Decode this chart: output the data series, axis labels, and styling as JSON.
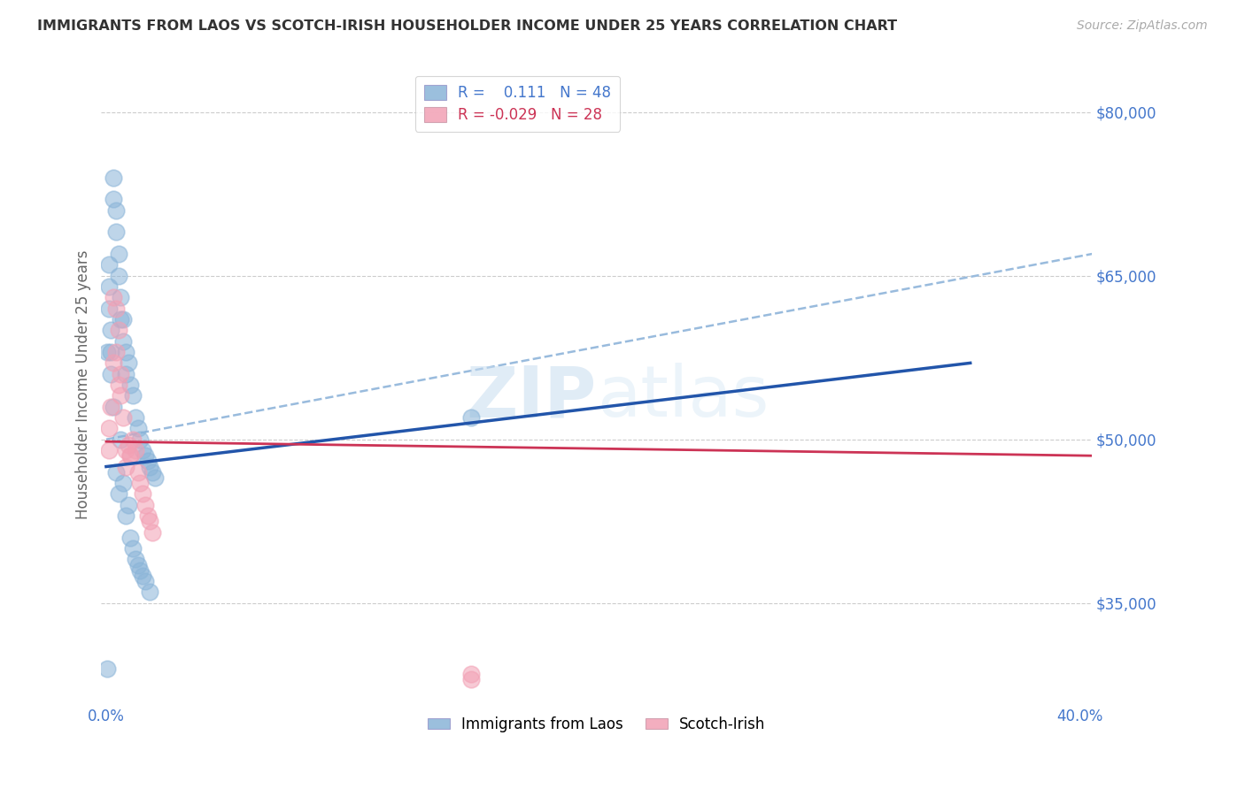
{
  "title": "IMMIGRANTS FROM LAOS VS SCOTCH-IRISH HOUSEHOLDER INCOME UNDER 25 YEARS CORRELATION CHART",
  "source": "Source: ZipAtlas.com",
  "ylabel": "Householder Income Under 25 years",
  "y_ticks": [
    35000,
    50000,
    65000,
    80000
  ],
  "y_tick_labels": [
    "$35,000",
    "$50,000",
    "$65,000",
    "$80,000"
  ],
  "y_min": 26000,
  "y_max": 84000,
  "x_min": -0.002,
  "x_max": 0.405,
  "watermark_zip": "ZIP",
  "watermark_atlas": "atlas",
  "blue_color": "#8ab4d8",
  "pink_color": "#f2a0b4",
  "blue_line_color": "#2255aa",
  "pink_line_color": "#cc3355",
  "dashed_line_color": "#99bbdd",
  "axis_label_color": "#4477cc",
  "background_color": "#ffffff",
  "grid_color": "#cccccc",
  "blue_x": [
    0.003,
    0.003,
    0.004,
    0.004,
    0.005,
    0.005,
    0.006,
    0.006,
    0.007,
    0.007,
    0.008,
    0.008,
    0.009,
    0.01,
    0.011,
    0.012,
    0.013,
    0.014,
    0.015,
    0.016,
    0.017,
    0.018,
    0.019,
    0.02,
    0.0005,
    0.001,
    0.001,
    0.001,
    0.002,
    0.002,
    0.002,
    0.003,
    0.004,
    0.005,
    0.006,
    0.007,
    0.008,
    0.009,
    0.01,
    0.011,
    0.012,
    0.013,
    0.014,
    0.015,
    0.016,
    0.018,
    0.15,
    0.0005
  ],
  "blue_y": [
    72000,
    74000,
    69000,
    71000,
    65000,
    67000,
    61000,
    63000,
    59000,
    61000,
    56000,
    58000,
    57000,
    55000,
    54000,
    52000,
    51000,
    50000,
    49000,
    48500,
    48000,
    47500,
    47000,
    46500,
    58000,
    62000,
    64000,
    66000,
    56000,
    58000,
    60000,
    53000,
    47000,
    45000,
    50000,
    46000,
    43000,
    44000,
    41000,
    40000,
    39000,
    38500,
    38000,
    37500,
    37000,
    36000,
    52000,
    29000
  ],
  "pink_x": [
    0.001,
    0.001,
    0.002,
    0.003,
    0.004,
    0.005,
    0.006,
    0.007,
    0.008,
    0.009,
    0.01,
    0.011,
    0.012,
    0.013,
    0.014,
    0.015,
    0.016,
    0.017,
    0.018,
    0.019,
    0.003,
    0.004,
    0.005,
    0.006,
    0.008,
    0.01,
    0.15,
    0.15
  ],
  "pink_y": [
    51000,
    49000,
    53000,
    57000,
    62000,
    60000,
    56000,
    52000,
    49000,
    49500,
    48500,
    50000,
    49000,
    47000,
    46000,
    45000,
    44000,
    43000,
    42500,
    41500,
    63000,
    58000,
    55000,
    54000,
    47500,
    48500,
    28500,
    28000
  ],
  "blue_line_x0": 0.0,
  "blue_line_y0": 47500,
  "blue_line_x1": 0.355,
  "blue_line_y1": 57000,
  "dashed_line_x0": 0.0,
  "dashed_line_y0": 50000,
  "dashed_line_x1": 0.405,
  "dashed_line_y1": 67000,
  "pink_line_x0": 0.0,
  "pink_line_y0": 49800,
  "pink_line_x1": 0.405,
  "pink_line_y1": 48500
}
